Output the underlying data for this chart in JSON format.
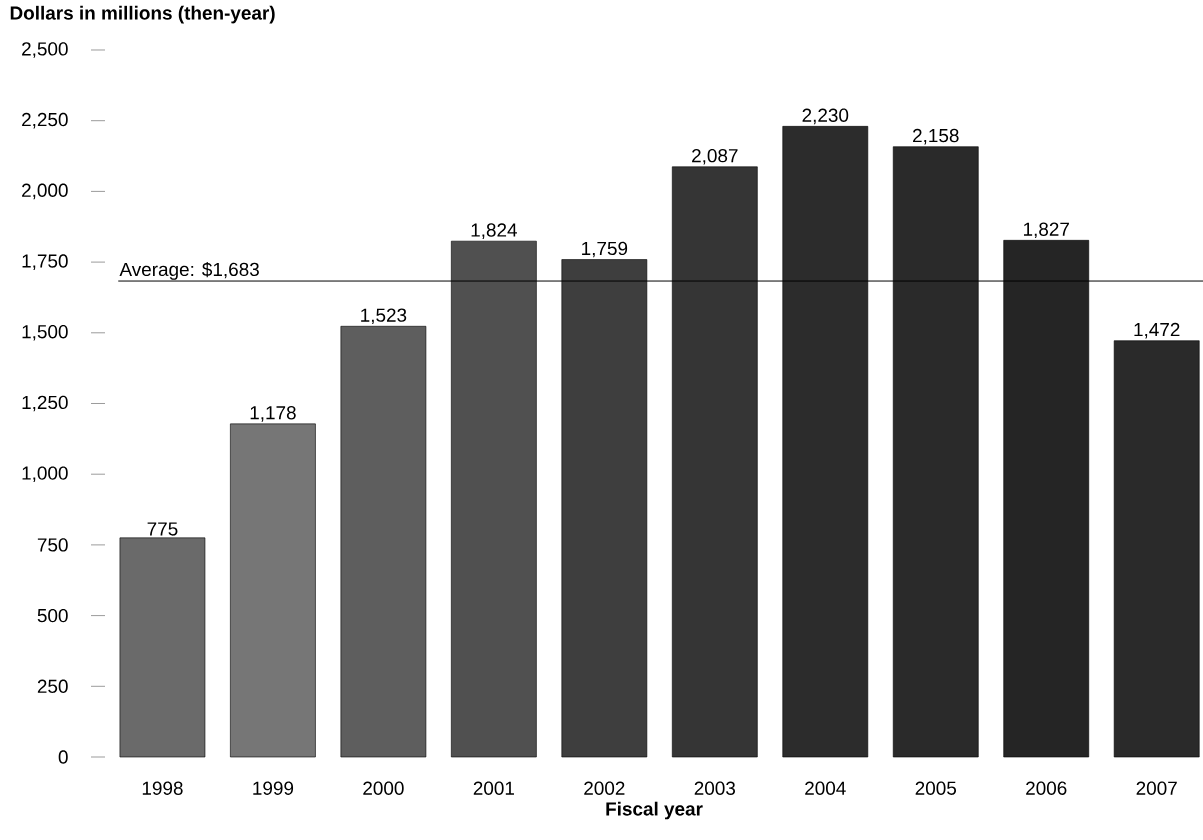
{
  "chart_data": {
    "type": "bar",
    "ylabel": "Dollars in millions (then-year)",
    "xlabel": "Fiscal year",
    "categories": [
      "1998",
      "1999",
      "2000",
      "2001",
      "2002",
      "2003",
      "2004",
      "2005",
      "2006",
      "2007"
    ],
    "values": [
      775,
      1178,
      1523,
      1824,
      1759,
      2087,
      2230,
      2158,
      1827,
      1472
    ],
    "value_labels": [
      "775",
      "1,178",
      "1,523",
      "1,824",
      "1,759",
      "2,087",
      "2,230",
      "2,158",
      "1,827",
      "1,472"
    ],
    "colors": [
      "#6a6a6a",
      "#767676",
      "#5e5e5e",
      "#505050",
      "#3e3e3e",
      "#353535",
      "#2c2c2c",
      "#2a2a2a",
      "#252525",
      "#2a2a2a"
    ],
    "ylim": [
      0,
      2500
    ],
    "yticks": [
      {
        "value": 0,
        "label": "0"
      },
      {
        "value": 250,
        "label": "250"
      },
      {
        "value": 500,
        "label": "500"
      },
      {
        "value": 750,
        "label": "750"
      },
      {
        "value": 1000,
        "label": "1,000"
      },
      {
        "value": 1250,
        "label": "1,250"
      },
      {
        "value": 1500,
        "label": "1,500"
      },
      {
        "value": 1750,
        "label": "1,750"
      },
      {
        "value": 2000,
        "label": "2,000"
      },
      {
        "value": 2250,
        "label": "2,250"
      },
      {
        "value": 2500,
        "label": "2,500"
      }
    ],
    "ref_lines": [
      {
        "axis": "y",
        "value": 1683,
        "label": "Average: $1,683",
        "color": "#000000"
      }
    ],
    "grid": false
  }
}
